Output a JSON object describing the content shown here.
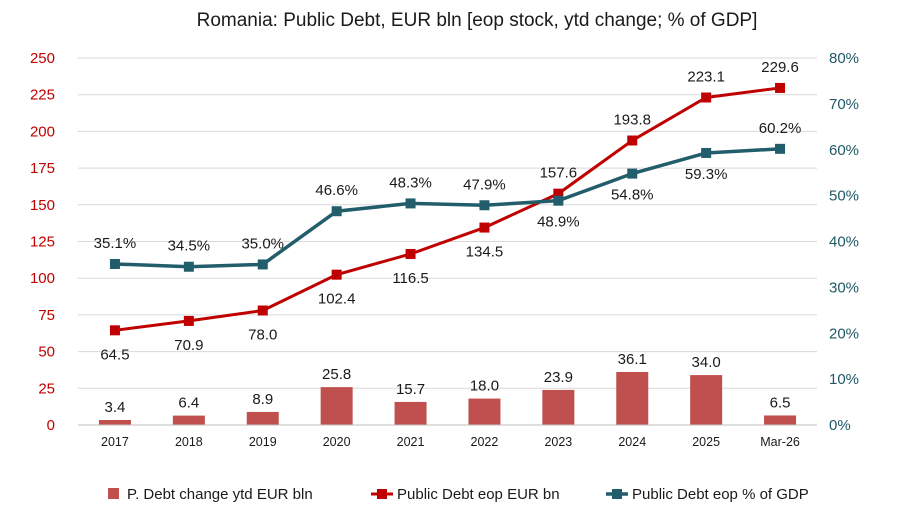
{
  "chart_data": {
    "type": "bar+line",
    "title": "Romania: Public Debt, EUR bln [eop stock, ytd change; % of GDP]",
    "categories": [
      "2017",
      "2018",
      "2019",
      "2020",
      "2021",
      "2022",
      "2023",
      "2024",
      "2025",
      "Mar-26"
    ],
    "ylim_left": [
      0,
      250
    ],
    "ylim_right": [
      0,
      80
    ],
    "yticks_left": [
      "0",
      "25",
      "50",
      "75",
      "100",
      "125",
      "150",
      "175",
      "200",
      "225",
      "250"
    ],
    "yticks_right": [
      "0%",
      "10%",
      "20%",
      "30%",
      "40%",
      "50%",
      "60%",
      "70%",
      "80%"
    ],
    "grid": true,
    "legend_position": "bottom",
    "colors": {
      "bars": "#c0504d",
      "debt_eur": "#c00000",
      "debt_gdp": "#215d6b",
      "left_axis": "#c00000",
      "right_axis": "#1f5866"
    },
    "series": [
      {
        "name": "P. Debt change ytd EUR bln",
        "kind": "bar",
        "axis": "left",
        "values": [
          3.4,
          6.4,
          8.9,
          25.8,
          15.7,
          18.0,
          23.9,
          36.1,
          34.0,
          6.5
        ],
        "labels": [
          "3.4",
          "6.4",
          "8.9",
          "25.8",
          "15.7",
          "18.0",
          "23.9",
          "36.1",
          "34.0",
          "6.5"
        ]
      },
      {
        "name": "Public Debt eop EUR bn",
        "kind": "line",
        "axis": "left",
        "values": [
          64.5,
          70.9,
          78.0,
          102.4,
          116.5,
          134.5,
          157.6,
          193.8,
          223.1,
          229.6
        ],
        "labels": [
          "64.5",
          "70.9",
          "78.0",
          "102.4",
          "116.5",
          "134.5",
          "157.6",
          "193.8",
          "223.1",
          "229.6"
        ]
      },
      {
        "name": "Public Debt eop % of GDP",
        "kind": "line",
        "axis": "right",
        "values": [
          35.1,
          34.5,
          35.0,
          46.6,
          48.3,
          47.9,
          48.9,
          54.8,
          59.3,
          60.2
        ],
        "labels": [
          "35.1%",
          "34.5%",
          "35.0%",
          "46.6%",
          "48.3%",
          "47.9%",
          "48.9%",
          "54.8%",
          "59.3%",
          "60.2%"
        ]
      }
    ]
  }
}
